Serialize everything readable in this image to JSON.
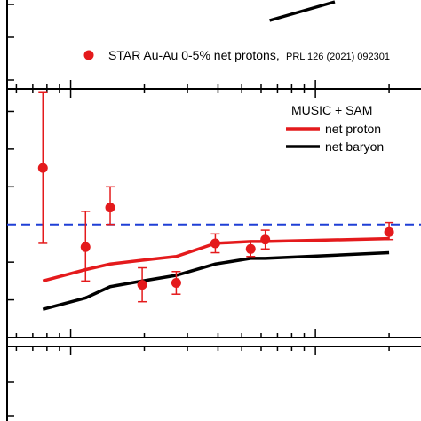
{
  "chart_data": [
    {
      "type": "line",
      "panel": "top",
      "series": [
        {
          "name": "",
          "color": "#000000",
          "x": [
            65,
            120
          ],
          "y": [
            0.2,
            0.8
          ]
        }
      ]
    },
    {
      "type": "scatter",
      "panel": "middle",
      "xscale": "log",
      "grid": false,
      "reference_line": {
        "y": 1.0,
        "style": "dashed",
        "color": "#1f3fd6"
      },
      "legend_top": {
        "marker_color": "#e41a1c",
        "label": "STAR Au-Au 0-5% net protons,",
        "ref": "PRL 126 (2021) 092301"
      },
      "legend_models": {
        "title": "MUSIC + SAM",
        "entries": [
          {
            "label": "net proton",
            "color": "#e41a1c"
          },
          {
            "label": "net baryon",
            "color": "#000000"
          }
        ]
      },
      "series": [
        {
          "name": "STAR Au-Au 0-5% net protons",
          "kind": "scatter",
          "color": "#e41a1c",
          "points": [
            {
              "x": 7.7,
              "y": 1.3,
              "ylo": 0.9,
              "yhi": 1.7
            },
            {
              "x": 11.5,
              "y": 0.88,
              "ylo": 0.7,
              "yhi": 1.07
            },
            {
              "x": 14.5,
              "y": 1.09,
              "ylo": 1.0,
              "yhi": 1.2
            },
            {
              "x": 19.6,
              "y": 0.68,
              "ylo": 0.59,
              "yhi": 0.77
            },
            {
              "x": 27,
              "y": 0.69,
              "ylo": 0.63,
              "yhi": 0.75
            },
            {
              "x": 39,
              "y": 0.9,
              "ylo": 0.85,
              "yhi": 0.95
            },
            {
              "x": 54.4,
              "y": 0.87,
              "ylo": 0.83,
              "yhi": 0.91
            },
            {
              "x": 62.4,
              "y": 0.92,
              "ylo": 0.87,
              "yhi": 0.97
            },
            {
              "x": 200,
              "y": 0.96,
              "ylo": 0.92,
              "yhi": 1.01
            }
          ]
        },
        {
          "name": "net proton",
          "kind": "line",
          "color": "#e41a1c",
          "x": [
            7.7,
            11.5,
            14.5,
            19.6,
            27,
            39,
            54.4,
            62.4,
            200
          ],
          "y": [
            0.7,
            0.76,
            0.79,
            0.81,
            0.83,
            0.9,
            0.91,
            0.91,
            0.925
          ]
        },
        {
          "name": "net baryon",
          "kind": "line",
          "color": "#000000",
          "x": [
            7.7,
            11.5,
            14.5,
            19.6,
            27,
            39,
            54.4,
            62.4,
            200
          ],
          "y": [
            0.55,
            0.61,
            0.67,
            0.7,
            0.73,
            0.79,
            0.82,
            0.82,
            0.85
          ]
        }
      ]
    },
    {
      "type": "line",
      "panel": "bottom",
      "series": []
    }
  ]
}
